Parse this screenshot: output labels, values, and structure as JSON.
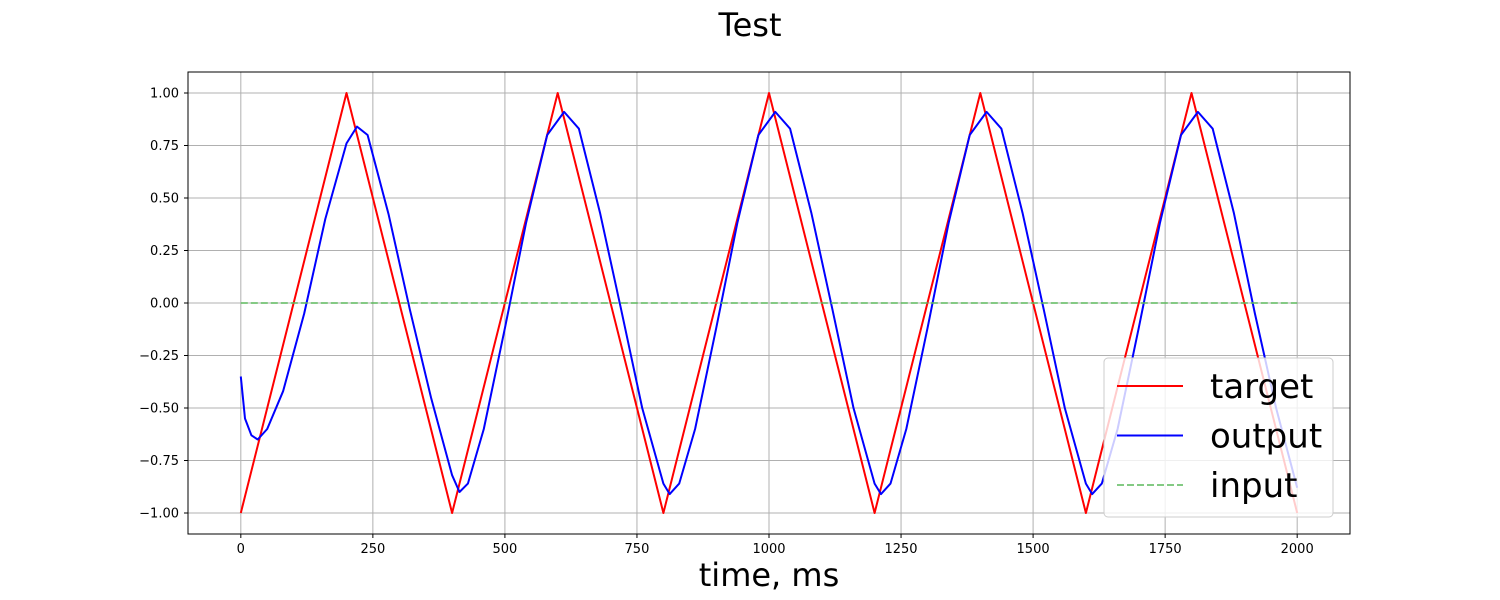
{
  "chart_data": {
    "type": "line",
    "title": "Test",
    "xlabel": "time, ms",
    "ylabel": "",
    "xlim": [
      -100,
      2100
    ],
    "ylim": [
      -1.1,
      1.1
    ],
    "x_ticks": [
      0,
      250,
      500,
      750,
      1000,
      1250,
      1500,
      1750,
      2000
    ],
    "y_ticks": [
      1.0,
      0.75,
      0.5,
      0.25,
      0.0,
      -0.25,
      -0.5,
      -0.75,
      -1.0
    ],
    "x_tick_labels": [
      "0",
      "250",
      "500",
      "750",
      "1000",
      "1250",
      "1500",
      "1750",
      "2000"
    ],
    "y_tick_labels": [
      "1.00",
      "0.75",
      "0.50",
      "0.25",
      "0.00",
      "−0.25",
      "−0.50",
      "−0.75",
      "−1.00"
    ],
    "grid": true,
    "legend_position": "lower-right",
    "series": [
      {
        "name": "target",
        "color": "#ff0000",
        "style": "solid",
        "x": [
          0,
          200,
          400,
          600,
          800,
          1000,
          1200,
          1400,
          1600,
          1800,
          2000
        ],
        "y": [
          -1,
          1,
          -1,
          1,
          -1,
          1,
          -1,
          1,
          -1,
          1,
          -1
        ]
      },
      {
        "name": "output",
        "color": "#0000ff",
        "style": "solid",
        "x": [
          0,
          8,
          20,
          32,
          50,
          80,
          120,
          160,
          200,
          220,
          240,
          280,
          320,
          360,
          400,
          414,
          430,
          460,
          500,
          540,
          580,
          612,
          640,
          680,
          720,
          760,
          800,
          812,
          830,
          860,
          900,
          940,
          980,
          1012,
          1040,
          1080,
          1120,
          1160,
          1200,
          1212,
          1230,
          1260,
          1300,
          1340,
          1380,
          1412,
          1440,
          1480,
          1520,
          1560,
          1600,
          1612,
          1630,
          1660,
          1700,
          1740,
          1780,
          1812,
          1840,
          1880,
          1920,
          1960,
          2000
        ],
        "y": [
          -0.35,
          -0.55,
          -0.63,
          -0.65,
          -0.6,
          -0.42,
          -0.05,
          0.4,
          0.76,
          0.84,
          0.8,
          0.42,
          -0.03,
          -0.45,
          -0.82,
          -0.9,
          -0.86,
          -0.6,
          -0.12,
          0.38,
          0.8,
          0.91,
          0.83,
          0.43,
          -0.03,
          -0.5,
          -0.86,
          -0.91,
          -0.86,
          -0.6,
          -0.12,
          0.38,
          0.8,
          0.91,
          0.83,
          0.43,
          -0.03,
          -0.5,
          -0.86,
          -0.91,
          -0.86,
          -0.6,
          -0.12,
          0.38,
          0.8,
          0.91,
          0.83,
          0.43,
          -0.03,
          -0.5,
          -0.86,
          -0.91,
          -0.86,
          -0.6,
          -0.12,
          0.38,
          0.8,
          0.91,
          0.83,
          0.43,
          -0.05,
          -0.5,
          -0.88
        ]
      },
      {
        "name": "input",
        "color": "#5cb85c",
        "style": "dashed",
        "x": [
          0,
          2000
        ],
        "y": [
          0,
          0
        ]
      }
    ]
  }
}
